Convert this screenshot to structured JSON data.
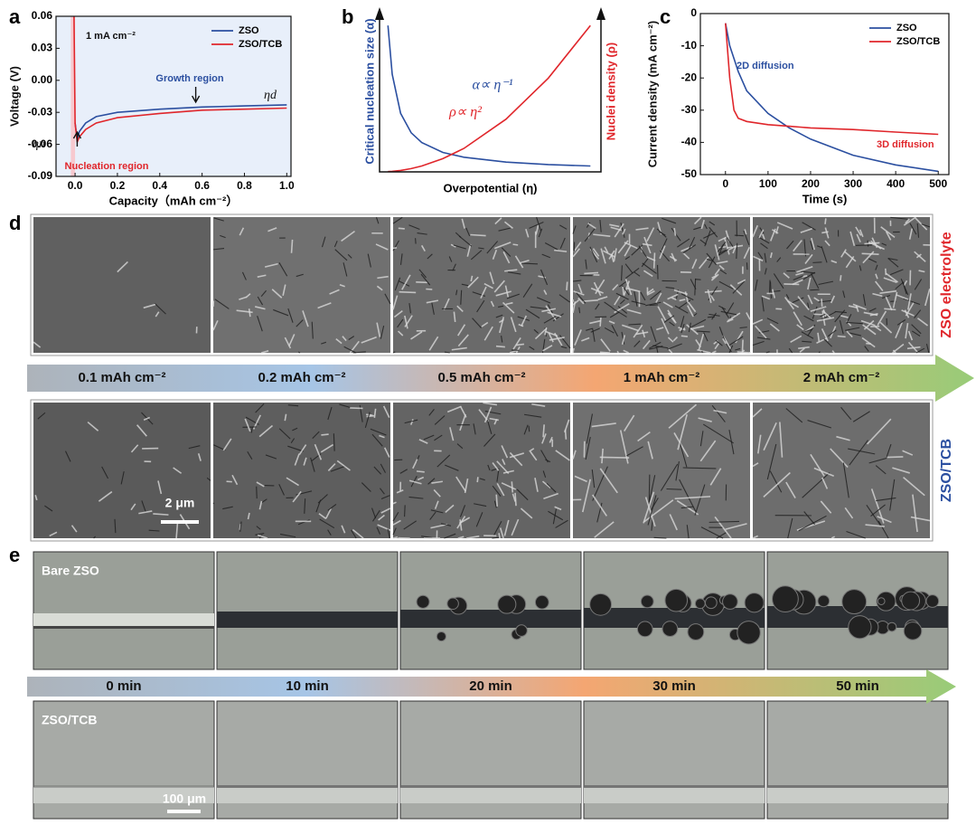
{
  "chart_data": [
    {
      "type": "line",
      "label": "a",
      "xlabel": "Capacity（mAh cm⁻²）",
      "ylabel": "Voltage (V)",
      "x": [
        -0.005,
        0,
        0.01,
        0.02,
        0.05,
        0.1,
        0.2,
        0.4,
        0.6,
        0.8,
        1.0
      ],
      "series": [
        {
          "name": "ZSO",
          "color": "#2b4fa0",
          "values": [
            null,
            -0.04,
            -0.055,
            -0.048,
            -0.04,
            -0.034,
            -0.03,
            -0.027,
            -0.025,
            -0.024,
            -0.023
          ]
        },
        {
          "name": "ZSO/TCB",
          "color": "#e0262b",
          "values": [
            0.06,
            -0.04,
            -0.058,
            -0.053,
            -0.046,
            -0.04,
            -0.035,
            -0.031,
            -0.028,
            -0.027,
            -0.026
          ]
        }
      ],
      "xlim": [
        -0.09,
        1.02
      ],
      "ylim": [
        -0.09,
        0.06
      ],
      "xticks": [
        {
          "value": 0,
          "label": "0.0"
        },
        0.2,
        0.4,
        0.6,
        0.8,
        {
          "value": 1,
          "label": "1.0"
        }
      ],
      "yticks": [
        -0.09,
        -0.06,
        -0.03,
        {
          "value": 0,
          "label": "0.00"
        },
        0.03,
        0.06
      ],
      "legend": "upper right",
      "annotations": [
        "1 mA cm⁻²",
        "Growth region",
        "ηd",
        "ηn",
        "Nucleation region"
      ]
    },
    {
      "type": "line",
      "label": "b",
      "xlabel": "Overpotential (η)",
      "ylabel": "Critical nucleation size (α)",
      "y2label": "Nuclei density (ρ)",
      "x": [
        0.04,
        0.06,
        0.1,
        0.15,
        0.2,
        0.3,
        0.4,
        0.6,
        0.8,
        1.0
      ],
      "series": [
        {
          "color": "#2b4fa0",
          "values": [
            1,
            0.667,
            0.4,
            0.267,
            0.2,
            0.133,
            0.1,
            0.067,
            0.05,
            0.04
          ]
        },
        {
          "color": "#e0262b",
          "axis": "y2",
          "values": [
            0.0016,
            0.0036,
            0.01,
            0.0225,
            0.04,
            0.09,
            0.16,
            0.36,
            0.64,
            1.0
          ]
        }
      ],
      "xlim": [
        0,
        1.05
      ],
      "ylim": [
        0,
        1.1
      ],
      "y2lim": [
        0,
        1.1
      ],
      "annotations": [
        "α∝ η⁻¹",
        "ρ∝ η²"
      ]
    },
    {
      "type": "line",
      "label": "c",
      "xlabel": "Time (s)",
      "ylabel": "Current density (mA cm⁻²)",
      "x": [
        0,
        10,
        20,
        30,
        50,
        100,
        150,
        200,
        300,
        400,
        500
      ],
      "series": [
        {
          "name": "ZSO",
          "color": "#2b4fa0",
          "values": [
            -3,
            -10,
            -14,
            -18,
            -24,
            -31,
            -35.5,
            -39,
            -44,
            -47,
            -49
          ]
        },
        {
          "name": "ZSO/TCB",
          "color": "#e0262b",
          "values": [
            -3,
            -20,
            -30,
            -32.5,
            -33.5,
            -34.5,
            -35,
            -35.5,
            -36,
            -36.8,
            -37.5
          ]
        }
      ],
      "xlim": [
        -59,
        525
      ],
      "ylim": [
        -50,
        0
      ],
      "xticks": [
        0,
        100,
        200,
        300,
        400,
        500
      ],
      "yticks": [
        -50,
        -40,
        -30,
        -20,
        -10,
        0
      ],
      "legend": "upper right",
      "annotations": [
        "2D diffusion",
        "3D diffusion"
      ]
    }
  ],
  "panel_d": {
    "label": "d",
    "rows": [
      "ZSO electrolyte",
      "ZSO/TCB"
    ],
    "capacities": [
      "0.1 mAh cm⁻²",
      "0.2 mAh cm⁻²",
      "0.5 mAh cm⁻²",
      "1 mAh cm⁻²",
      "2 mAh cm⁻²"
    ],
    "scale_bar": "2 μm"
  },
  "panel_e": {
    "label": "e",
    "rows": [
      "Bare ZSO",
      "ZSO/TCB"
    ],
    "times": [
      "0 min",
      "10 min",
      "20 min",
      "30 min",
      "50 min"
    ],
    "scale_bar": "100 μm"
  }
}
